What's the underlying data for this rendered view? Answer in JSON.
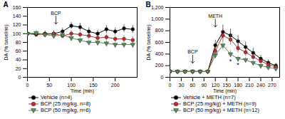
{
  "chart_data": [
    {
      "type": "line",
      "title": "A",
      "x_label": "Time (min)",
      "y_label": "DA (% baseline)",
      "x": [
        0,
        20,
        40,
        60,
        80,
        100,
        120,
        140,
        160,
        180,
        200,
        220,
        240
      ],
      "xlim": [
        0,
        250
      ],
      "xticks": [
        0,
        50,
        100,
        150,
        200
      ],
      "ylim": [
        0,
        160
      ],
      "yticks": [
        0,
        20,
        40,
        60,
        80,
        100,
        120,
        140,
        160
      ],
      "series": [
        {
          "name": "Vehicle (n=4)",
          "color": "#000000",
          "marker": "circle",
          "values": [
            100,
            98,
            100,
            100,
            105,
            118,
            115,
            105,
            100,
            110,
            105,
            112,
            110
          ],
          "errors": [
            5,
            6,
            6,
            7,
            8,
            8,
            9,
            8,
            8,
            9,
            8,
            9,
            9
          ]
        },
        {
          "name": "BCP (25 mg/kg, n=8)",
          "color": "#c0282d",
          "marker": "circle",
          "values": [
            100,
            100,
            98,
            100,
            95,
            100,
            98,
            95,
            90,
            92,
            88,
            88,
            85
          ],
          "errors": [
            4,
            5,
            5,
            6,
            6,
            7,
            6,
            7,
            7,
            7,
            7,
            8,
            8
          ]
        },
        {
          "name": "BCP (50 mg/kg, n=6)",
          "color": "#5b8c5a",
          "marker": "triangle-down",
          "values": [
            100,
            102,
            98,
            95,
            97,
            90,
            85,
            80,
            80,
            78,
            75,
            75,
            75
          ],
          "errors": [
            5,
            6,
            6,
            6,
            7,
            7,
            7,
            7,
            8,
            8,
            8,
            8,
            8
          ]
        }
      ],
      "annotations": [
        {
          "text": "BCP",
          "x": 65,
          "y": 140,
          "marker": "arrow"
        }
      ]
    },
    {
      "type": "line",
      "title": "B",
      "x_label": "Time (min)",
      "y_label": "DA (% baseline)",
      "x": [
        0,
        20,
        40,
        60,
        80,
        100,
        120,
        140,
        160,
        180,
        200,
        220,
        240,
        260,
        280
      ],
      "xlim": [
        0,
        290
      ],
      "xticks": [
        0,
        30,
        60,
        90,
        120,
        150,
        180,
        210,
        240,
        270
      ],
      "ylim": [
        0,
        1200
      ],
      "yticks": [
        0,
        200,
        400,
        600,
        800,
        1000,
        1200
      ],
      "series": [
        {
          "name": "Vehicle + METH (n=7)",
          "color": "#000000",
          "marker": "circle",
          "values": [
            100,
            100,
            100,
            100,
            100,
            100,
            550,
            780,
            720,
            620,
            520,
            420,
            320,
            250,
            200
          ],
          "errors": [
            10,
            10,
            10,
            10,
            10,
            10,
            90,
            120,
            110,
            100,
            90,
            80,
            60,
            50,
            40
          ]
        },
        {
          "name": "BCP (25 mg/kg) + METH (n=9)",
          "color": "#c0282d",
          "marker": "circle",
          "values": [
            100,
            100,
            100,
            100,
            100,
            100,
            450,
            720,
            650,
            500,
            430,
            350,
            280,
            220,
            180
          ],
          "errors": [
            10,
            10,
            10,
            10,
            10,
            10,
            80,
            110,
            100,
            80,
            70,
            60,
            50,
            40,
            30
          ]
        },
        {
          "name": "BCP (50 mg/kg) + METH (n=12)",
          "color": "#5b8c5a",
          "marker": "triangle-down",
          "values": [
            100,
            100,
            100,
            100,
            100,
            100,
            380,
            550,
            400,
            320,
            300,
            250,
            200,
            170,
            150
          ],
          "errors": [
            10,
            10,
            10,
            10,
            10,
            10,
            60,
            80,
            60,
            50,
            45,
            40,
            35,
            30,
            25
          ]
        }
      ],
      "annotations": [
        {
          "text": "BCP",
          "x": 60,
          "y": 380,
          "marker": "arrow"
        },
        {
          "text": "METH",
          "x": 120,
          "y": 1000,
          "marker": "arrow"
        },
        {
          "text": "*",
          "x": 160,
          "y": 280
        },
        {
          "text": "*",
          "x": 180,
          "y": 210
        }
      ]
    }
  ]
}
